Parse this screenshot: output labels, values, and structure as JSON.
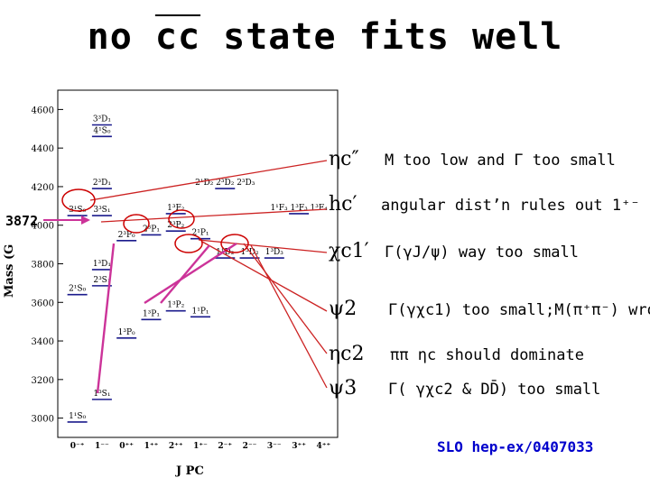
{
  "title": {
    "prefix": "no ",
    "cc": "cc",
    "suffix": " state fits well"
  },
  "marker_3872": "3872",
  "reference": "SLO hep-ex/0407033",
  "arrow_color": "#cc3399",
  "rows": [
    {
      "state": "ηc″",
      "reason": "M too low and Γ too small"
    },
    {
      "state": "hc′",
      "reason": "angular dist’n rules out 1⁺⁻"
    },
    {
      "state": "χc1′",
      "reason": "Γ(γJ/ψ) way too small"
    },
    {
      "state": "ψ2",
      "reason": "Γ(γχc1) too small;M(π⁺π⁻) wrong"
    },
    {
      "state": "ηc2",
      "reason": "ππ ηc should dominate"
    },
    {
      "state": "ψ3",
      "reason": "Γ( γχc2 & DD̄) too small"
    }
  ],
  "chart_data": {
    "type": "level-diagram",
    "ylabel": "Mass (G",
    "xlabel": "J PC",
    "y_ticks": [
      "3000",
      "3200",
      "3400",
      "3600",
      "3800",
      "4000",
      "4200",
      "4400",
      "4600"
    ],
    "x_ticks": [
      "0⁻⁺",
      "1⁻⁻",
      "0⁺⁺",
      "1⁺⁺",
      "2⁺⁺",
      "1⁺⁻",
      "2⁻⁺",
      "2⁻⁻",
      "3⁻⁻",
      "3⁺⁺",
      "4⁺⁺"
    ],
    "ylim": [
      2900,
      4700
    ],
    "levels": [
      {
        "label": "3³D₁",
        "jpc": "1⁻⁻",
        "mass": 4520
      },
      {
        "label": "4¹S₀",
        "jpc": "1⁻⁻",
        "mass": 4460
      },
      {
        "label": "2³D₁",
        "jpc": "1⁻⁻",
        "mass": 4190
      },
      {
        "label": "2¹D₂ 2³D₂ 2³D₃",
        "jpc": "2⁻⁺",
        "mass": 4190
      },
      {
        "label": "3¹S₀",
        "jpc": "0⁻⁺",
        "mass": 4050
      },
      {
        "label": "3³S₁",
        "jpc": "1⁻⁻",
        "mass": 4050
      },
      {
        "label": "1³F₂",
        "jpc": "2⁺⁺",
        "mass": 4060
      },
      {
        "label": "1¹F₃ 1³F₃ 1³F₄",
        "jpc": "3⁺⁺",
        "mass": 4060
      },
      {
        "label": "2³P₀",
        "jpc": "0⁺⁺",
        "mass": 3920
      },
      {
        "label": "2³P₁",
        "jpc": "1⁺⁺",
        "mass": 3950
      },
      {
        "label": "2¹P₁",
        "jpc": "1⁺⁻",
        "mass": 3930
      },
      {
        "label": "2³P₂",
        "jpc": "2⁺⁺",
        "mass": 3970
      },
      {
        "label": "1¹D₂",
        "jpc": "2⁻⁺",
        "mass": 3830
      },
      {
        "label": "1³D₂",
        "jpc": "2⁻⁻",
        "mass": 3830
      },
      {
        "label": "1³D₃",
        "jpc": "3⁻⁻",
        "mass": 3830
      },
      {
        "label": "1³D₁",
        "jpc": "1⁻⁻",
        "mass": 3770
      },
      {
        "label": "2¹S₀",
        "jpc": "0⁻⁺",
        "mass": 3640
      },
      {
        "label": "2³S₁",
        "jpc": "1⁻⁻",
        "mass": 3686
      },
      {
        "label": "1³P₁",
        "jpc": "1⁺⁺",
        "mass": 3511
      },
      {
        "label": "1¹P₁",
        "jpc": "1⁺⁻",
        "mass": 3525
      },
      {
        "label": "1³P₂",
        "jpc": "2⁺⁺",
        "mass": 3556
      },
      {
        "label": "1³P₀",
        "jpc": "0⁺⁺",
        "mass": 3415
      },
      {
        "label": "1³S₁",
        "jpc": "1⁻⁻",
        "mass": 3097
      },
      {
        "label": "1¹S₀",
        "jpc": "0⁻⁺",
        "mass": 2980
      }
    ]
  }
}
